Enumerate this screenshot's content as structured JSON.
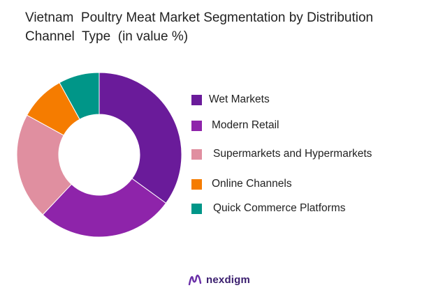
{
  "chart_data": {
    "type": "pie",
    "title": "Vietnam  Poultry Meat Market Segmentation by Distribution\nChannel  Type  (in value %)",
    "categories": [
      "Wet Markets",
      "Modern Retail",
      "Supermarkets and Hypermarkets",
      "Online Channels",
      "Quick Commerce Platforms"
    ],
    "values": [
      35,
      27,
      21,
      9,
      8
    ],
    "colors": [
      "#6a1b9a",
      "#8e24aa",
      "#e08fa0",
      "#f57c00",
      "#009688"
    ],
    "donut": true,
    "legend_position": "right"
  },
  "logo": {
    "text": "nexdigm",
    "icon": "nexdigm-logo-icon",
    "color": "#3a1e6e"
  }
}
